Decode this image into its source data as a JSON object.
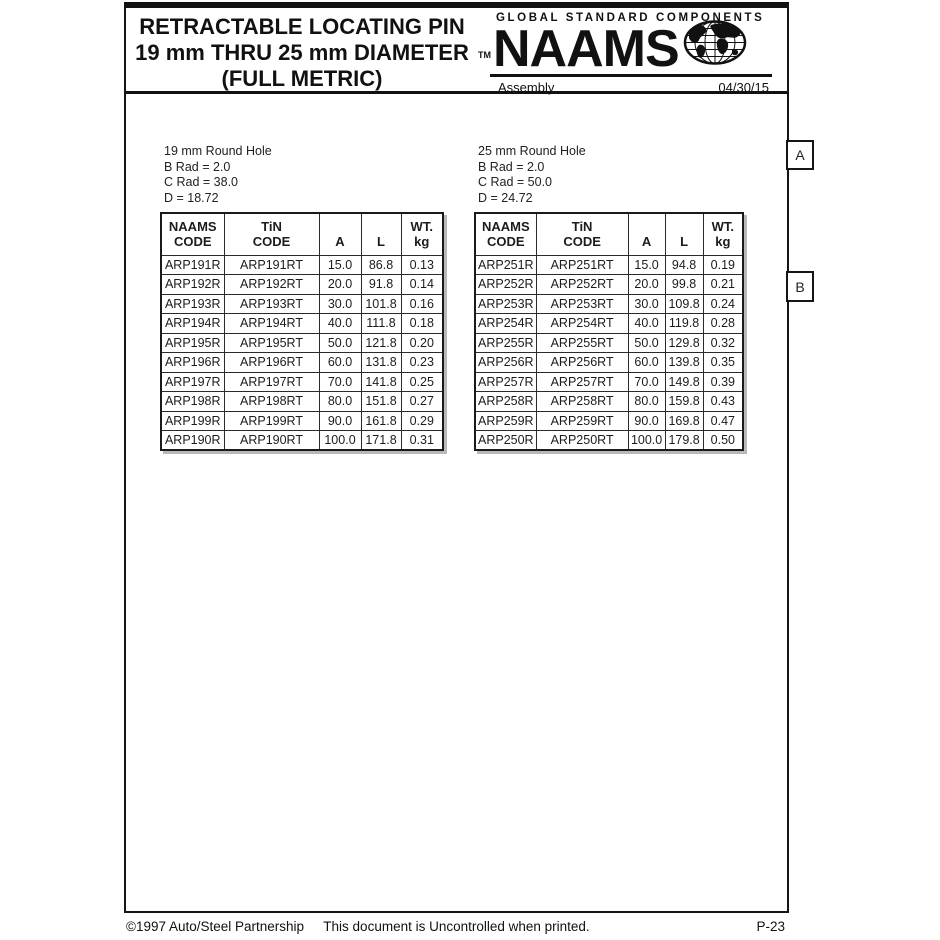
{
  "header": {
    "title_lines": [
      "RETRACTABLE LOCATING PIN",
      "19 mm THRU 25 mm DIAMETER",
      "(FULL METRIC)"
    ],
    "brand": {
      "tagline": "GLOBAL STANDARD COMPONENTS",
      "tm": "TM",
      "name": "NAAMS",
      "category": "Assembly",
      "date": "04/30/15"
    }
  },
  "margin_markers": [
    "A",
    "B"
  ],
  "tables": [
    {
      "intro_lines": [
        "19 mm Round Hole",
        "B Rad = 2.0",
        "C Rad = 38.0",
        "D = 18.72"
      ],
      "headers": [
        "NAAMS\nCODE",
        "TiN\nCODE",
        "A",
        "L",
        "WT.\nkg"
      ],
      "rows": [
        [
          "ARP191R",
          "ARP191RT",
          "15.0",
          "86.8",
          "0.13"
        ],
        [
          "ARP192R",
          "ARP192RT",
          "20.0",
          "91.8",
          "0.14"
        ],
        [
          "ARP193R",
          "ARP193RT",
          "30.0",
          "101.8",
          "0.16"
        ],
        [
          "ARP194R",
          "ARP194RT",
          "40.0",
          "111.8",
          "0.18"
        ],
        [
          "ARP195R",
          "ARP195RT",
          "50.0",
          "121.8",
          "0.20"
        ],
        [
          "ARP196R",
          "ARP196RT",
          "60.0",
          "131.8",
          "0.23"
        ],
        [
          "ARP197R",
          "ARP197RT",
          "70.0",
          "141.8",
          "0.25"
        ],
        [
          "ARP198R",
          "ARP198RT",
          "80.0",
          "151.8",
          "0.27"
        ],
        [
          "ARP199R",
          "ARP199RT",
          "90.0",
          "161.8",
          "0.29"
        ],
        [
          "ARP190R",
          "ARP190RT",
          "100.0",
          "171.8",
          "0.31"
        ]
      ]
    },
    {
      "intro_lines": [
        "25 mm Round Hole",
        "B Rad = 2.0",
        "C Rad = 50.0",
        "D = 24.72"
      ],
      "headers": [
        "NAAMS\nCODE",
        "TiN\nCODE",
        "A",
        "L",
        "WT.\nkg"
      ],
      "rows": [
        [
          "ARP251R",
          "ARP251RT",
          "15.0",
          "94.8",
          "0.19"
        ],
        [
          "ARP252R",
          "ARP252RT",
          "20.0",
          "99.8",
          "0.21"
        ],
        [
          "ARP253R",
          "ARP253RT",
          "30.0",
          "109.8",
          "0.24"
        ],
        [
          "ARP254R",
          "ARP254RT",
          "40.0",
          "119.8",
          "0.28"
        ],
        [
          "ARP255R",
          "ARP255RT",
          "50.0",
          "129.8",
          "0.32"
        ],
        [
          "ARP256R",
          "ARP256RT",
          "60.0",
          "139.8",
          "0.35"
        ],
        [
          "ARP257R",
          "ARP257RT",
          "70.0",
          "149.8",
          "0.39"
        ],
        [
          "ARP258R",
          "ARP258RT",
          "80.0",
          "159.8",
          "0.43"
        ],
        [
          "ARP259R",
          "ARP259RT",
          "90.0",
          "169.8",
          "0.47"
        ],
        [
          "ARP250R",
          "ARP250RT",
          "100.0",
          "179.8",
          "0.50"
        ]
      ]
    }
  ],
  "footer": {
    "copyright": "©1997 Auto/Steel Partnership",
    "notice": "This document is Uncontrolled when printed.",
    "page_number": "P-23"
  },
  "colors": {
    "ink": "#111111",
    "paper": "#ffffff",
    "table_shadow": "#b9b9b9"
  }
}
